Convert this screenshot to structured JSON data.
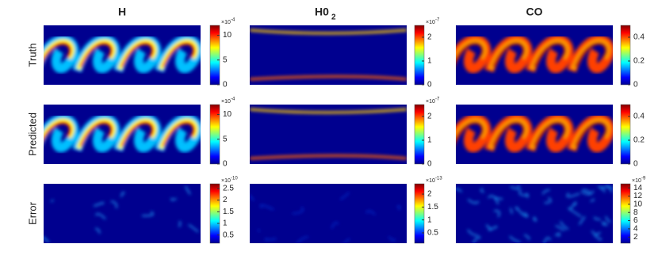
{
  "columns": [
    {
      "title": "H"
    },
    {
      "title": "H0",
      "subscript": "2"
    },
    {
      "title": "CO"
    }
  ],
  "rows": [
    {
      "label": "Truth"
    },
    {
      "label": "Predicted"
    },
    {
      "label": "Error"
    }
  ],
  "scale_base": "×10",
  "panels": [
    [
      {
        "exp": "-4",
        "lim": [
          0,
          12
        ],
        "ticks": [
          0,
          5,
          10
        ]
      },
      {
        "exp": "-7",
        "lim": [
          0,
          2.5
        ],
        "ticks": [
          0,
          1,
          2
        ]
      },
      {
        "lim": [
          0,
          0.5
        ],
        "ticks": [
          0,
          0.2,
          0.4
        ]
      }
    ],
    [
      {
        "exp": "-4",
        "lim": [
          0,
          12
        ],
        "ticks": [
          0,
          5,
          10
        ]
      },
      {
        "exp": "-7",
        "lim": [
          0,
          2.5
        ],
        "ticks": [
          0,
          1,
          2
        ]
      },
      {
        "lim": [
          0,
          0.5
        ],
        "ticks": [
          0,
          0.2,
          0.4
        ]
      }
    ],
    [
      {
        "exp": "-10",
        "lim": [
          0.15,
          2.7
        ],
        "ticks": [
          0.5,
          1,
          1.5,
          2,
          2.5
        ]
      },
      {
        "exp": "-13",
        "lim": [
          0.1,
          2.4
        ],
        "ticks": [
          0.5,
          1,
          1.5,
          2
        ]
      },
      {
        "exp": "-9",
        "lim": [
          0.5,
          15
        ],
        "ticks": [
          2,
          4,
          6,
          8,
          10,
          12,
          14
        ]
      }
    ]
  ]
}
